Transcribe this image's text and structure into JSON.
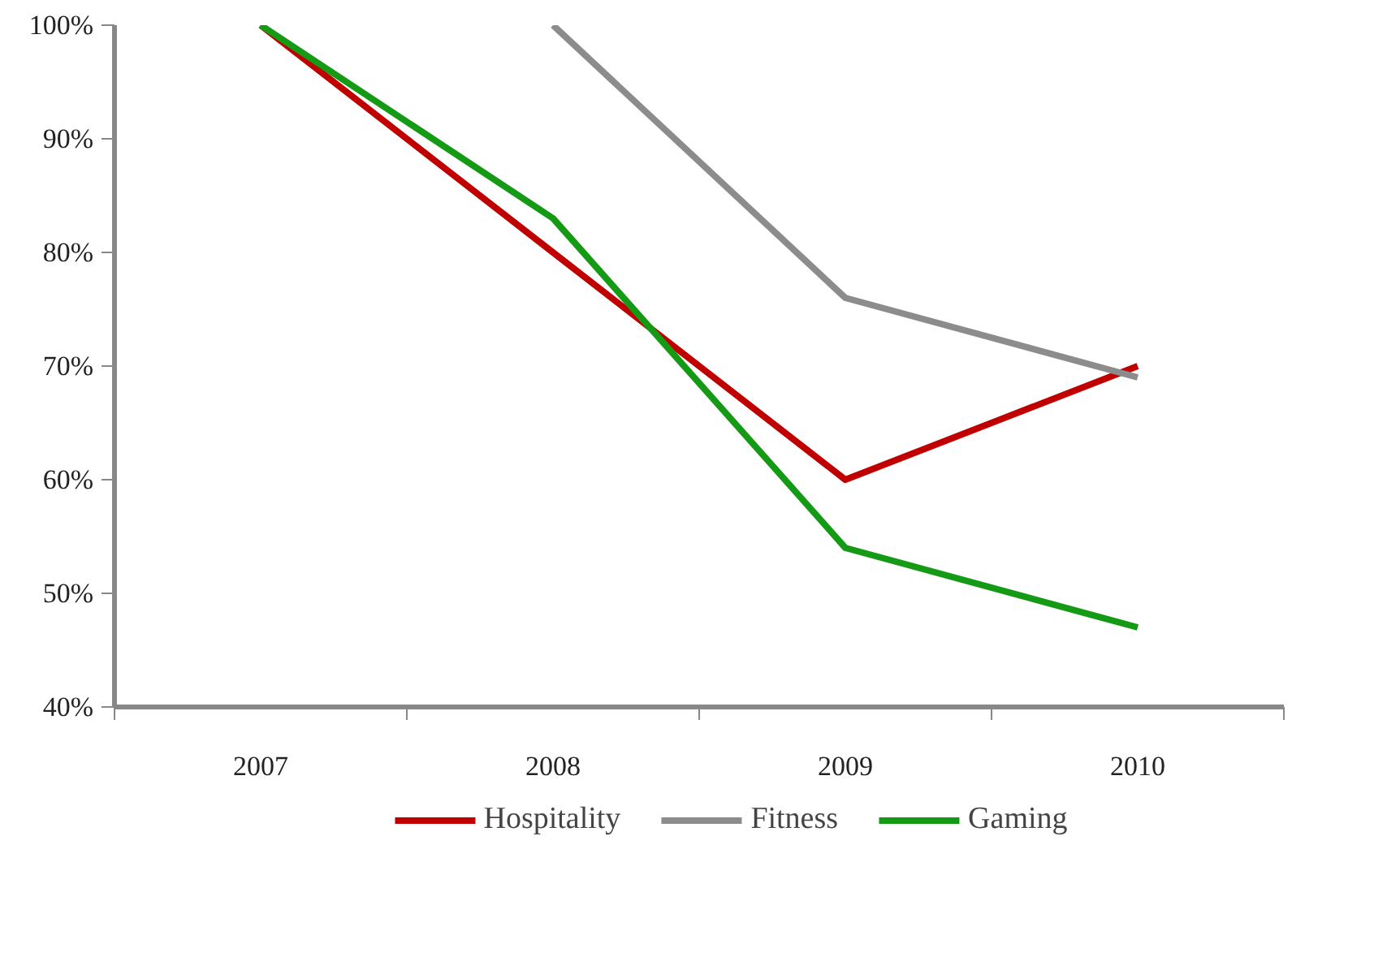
{
  "chart_data": {
    "type": "line",
    "categories": [
      "2007",
      "2008",
      "2009",
      "2010"
    ],
    "series": [
      {
        "name": "Hospitality",
        "color": "#c00000",
        "values": [
          100,
          80,
          60,
          70
        ]
      },
      {
        "name": "Fitness",
        "color": "#8c8c8c",
        "values": [
          null,
          100,
          76,
          69
        ]
      },
      {
        "name": "Gaming",
        "color": "#159a15",
        "values": [
          100,
          83,
          54,
          47
        ]
      }
    ],
    "ylim": [
      40,
      100
    ],
    "yticks": [
      {
        "value": 40,
        "label": "40%"
      },
      {
        "value": 50,
        "label": "50%"
      },
      {
        "value": 60,
        "label": "60%"
      },
      {
        "value": 70,
        "label": "70%"
      },
      {
        "value": 80,
        "label": "80%"
      },
      {
        "value": 90,
        "label": "90%"
      },
      {
        "value": 100,
        "label": "100%"
      }
    ],
    "grid": false,
    "legend": "bottom",
    "marker": "none",
    "line_style": "solid"
  }
}
